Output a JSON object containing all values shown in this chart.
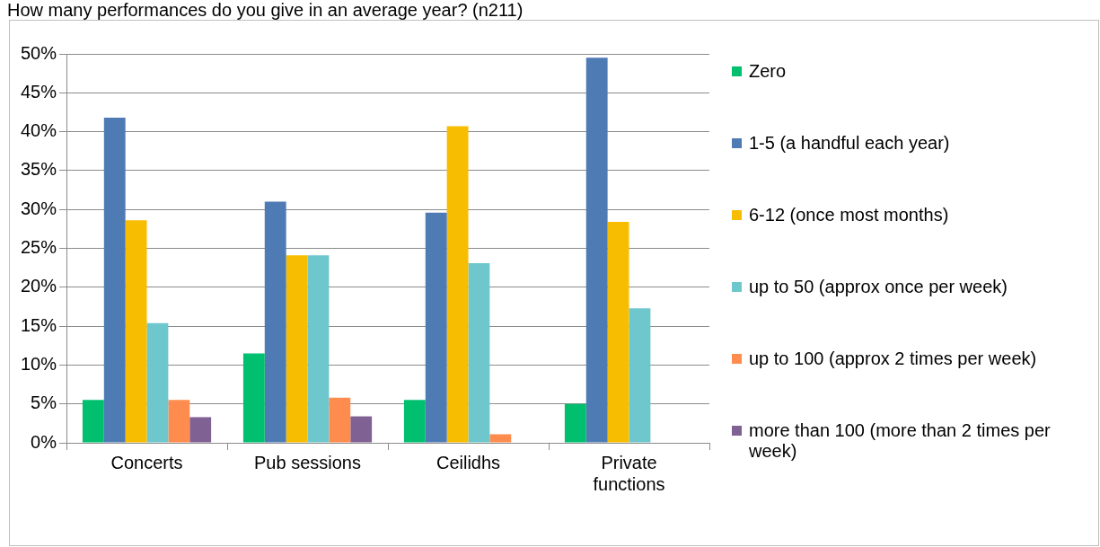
{
  "chart_data": {
    "type": "bar",
    "title": "How many performances do you give in an average year? (n211)",
    "categories": [
      "Concerts",
      "Pub sessions",
      "Ceilidhs",
      "Private functions"
    ],
    "series": [
      {
        "name": "Zero",
        "color": "#00bf6f",
        "values": [
          5.5,
          11.5,
          5.5,
          5.0
        ]
      },
      {
        "name": "1-5 (a handful each year)",
        "color": "#4f7bb4",
        "values": [
          41.8,
          31.0,
          29.6,
          49.5
        ]
      },
      {
        "name": "6-12 (once most months)",
        "color": "#f7bd00",
        "values": [
          28.6,
          24.1,
          40.7,
          28.4
        ]
      },
      {
        "name": "up to 50 (approx once per week)",
        "color": "#6ec7cc",
        "values": [
          15.4,
          24.1,
          23.1,
          17.3
        ]
      },
      {
        "name": "up to 100 (approx 2 times per week)",
        "color": "#ff8c4f",
        "values": [
          5.5,
          5.8,
          1.1,
          0
        ]
      },
      {
        "name": "more than 100 (more than 2 times per week)",
        "color": "#7f6194",
        "values": [
          3.3,
          3.4,
          0,
          0
        ]
      }
    ],
    "ylim": [
      0,
      50
    ],
    "yticks": [
      {
        "value": 0,
        "label": "0%"
      },
      {
        "value": 5,
        "label": "5%"
      },
      {
        "value": 10,
        "label": "10%"
      },
      {
        "value": 15,
        "label": "15%"
      },
      {
        "value": 20,
        "label": "20%"
      },
      {
        "value": 25,
        "label": "25%"
      },
      {
        "value": 30,
        "label": "30%"
      },
      {
        "value": 35,
        "label": "35%"
      },
      {
        "value": 40,
        "label": "40%"
      },
      {
        "value": 45,
        "label": "45%"
      },
      {
        "value": 50,
        "label": "50%"
      }
    ],
    "grid": "y",
    "legend": "right"
  }
}
